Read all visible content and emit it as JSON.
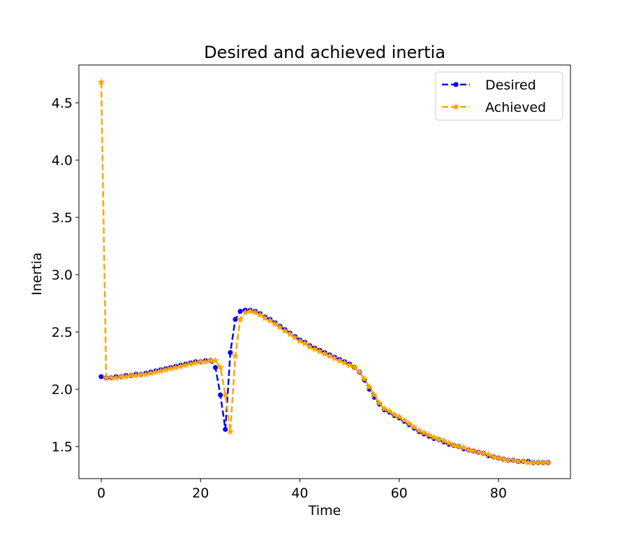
{
  "chart_data": {
    "type": "line",
    "title": "Desired and achieved inertia",
    "xlabel": "Time",
    "ylabel": "Inertia",
    "xlim": [
      -4.5,
      94.5
    ],
    "ylim": [
      1.22,
      4.83
    ],
    "xticks": [
      0,
      20,
      40,
      60,
      80
    ],
    "yticks": [
      1.5,
      2.0,
      2.5,
      3.0,
      3.5,
      4.0,
      4.5
    ],
    "xtick_labels": [
      "0",
      "20",
      "40",
      "60",
      "80"
    ],
    "ytick_labels": [
      "1.5",
      "2.0",
      "2.5",
      "3.0",
      "3.5",
      "4.0",
      "4.5"
    ],
    "grid": false,
    "legend": {
      "placement": "upper-right"
    },
    "x": [
      0,
      1,
      2,
      3,
      4,
      5,
      6,
      7,
      8,
      9,
      10,
      11,
      12,
      13,
      14,
      15,
      16,
      17,
      18,
      19,
      20,
      21,
      22,
      23,
      24,
      25,
      26,
      27,
      28,
      29,
      30,
      31,
      32,
      33,
      34,
      35,
      36,
      37,
      38,
      39,
      40,
      41,
      42,
      43,
      44,
      45,
      46,
      47,
      48,
      49,
      50,
      51,
      52,
      53,
      54,
      55,
      56,
      57,
      58,
      59,
      60,
      61,
      62,
      63,
      64,
      65,
      66,
      67,
      68,
      69,
      70,
      71,
      72,
      73,
      74,
      75,
      76,
      77,
      78,
      79,
      80,
      81,
      82,
      83,
      84,
      85,
      86,
      87,
      88,
      89,
      90
    ],
    "series": [
      {
        "name": "Desired",
        "color": "#0000ff",
        "marker": "circle",
        "values": [
          2.11,
          2.1,
          2.1,
          2.11,
          2.11,
          2.12,
          2.12,
          2.13,
          2.13,
          2.14,
          2.15,
          2.16,
          2.17,
          2.18,
          2.19,
          2.2,
          2.21,
          2.22,
          2.23,
          2.24,
          2.24,
          2.25,
          2.25,
          2.19,
          1.95,
          1.65,
          2.32,
          2.61,
          2.68,
          2.69,
          2.69,
          2.68,
          2.66,
          2.63,
          2.61,
          2.58,
          2.55,
          2.52,
          2.49,
          2.46,
          2.43,
          2.41,
          2.38,
          2.36,
          2.34,
          2.32,
          2.3,
          2.28,
          2.26,
          2.24,
          2.22,
          2.19,
          2.15,
          2.08,
          2.0,
          1.93,
          1.87,
          1.82,
          1.8,
          1.77,
          1.75,
          1.72,
          1.69,
          1.66,
          1.63,
          1.61,
          1.59,
          1.57,
          1.56,
          1.54,
          1.52,
          1.51,
          1.5,
          1.48,
          1.47,
          1.46,
          1.45,
          1.44,
          1.42,
          1.41,
          1.4,
          1.39,
          1.38,
          1.38,
          1.37,
          1.37,
          1.37,
          1.36,
          1.36,
          1.36,
          1.36
        ]
      },
      {
        "name": "Achieved",
        "color": "#ffa500",
        "marker": "star",
        "values": [
          4.68,
          2.1,
          2.1,
          2.1,
          2.11,
          2.11,
          2.12,
          2.12,
          2.13,
          2.13,
          2.14,
          2.15,
          2.16,
          2.17,
          2.18,
          2.19,
          2.2,
          2.21,
          2.22,
          2.23,
          2.24,
          2.24,
          2.25,
          2.25,
          2.19,
          1.95,
          1.63,
          2.29,
          2.61,
          2.67,
          2.68,
          2.67,
          2.65,
          2.62,
          2.6,
          2.57,
          2.54,
          2.51,
          2.48,
          2.45,
          2.42,
          2.4,
          2.37,
          2.35,
          2.33,
          2.31,
          2.29,
          2.27,
          2.25,
          2.23,
          2.21,
          2.19,
          2.15,
          2.09,
          2.02,
          1.95,
          1.88,
          1.83,
          1.81,
          1.78,
          1.76,
          1.73,
          1.7,
          1.67,
          1.64,
          1.62,
          1.6,
          1.58,
          1.56,
          1.55,
          1.53,
          1.51,
          1.5,
          1.49,
          1.47,
          1.46,
          1.45,
          1.44,
          1.43,
          1.41,
          1.4,
          1.39,
          1.38,
          1.38,
          1.37,
          1.37,
          1.36,
          1.36,
          1.36,
          1.36,
          1.36
        ]
      }
    ]
  }
}
